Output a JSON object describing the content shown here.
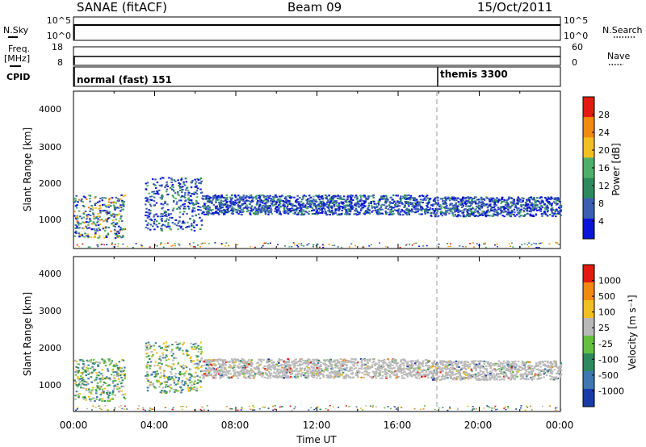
{
  "header": {
    "station": "SANAE (fitACF)",
    "beam": "Beam 09",
    "date": "15/Oct/2011"
  },
  "top_panels": {
    "nsky_label": "N.Sky",
    "nsky_ticks": [
      "10^5",
      "10^0"
    ],
    "nsearch_label": "N.Search",
    "nsearch_ticks": [
      "10^5",
      "10^0"
    ],
    "freq_label_1": "Freq.",
    "freq_label_2": "[MHz]",
    "freq_ticks": [
      "18",
      "8"
    ],
    "nave_label": "Nave",
    "nave_ticks": [
      "60",
      "0"
    ],
    "cpid_label": "CPID",
    "cpid_segments": [
      {
        "label": "normal (fast) 151",
        "start_hour": 0
      },
      {
        "label": "themis 3300",
        "start_hour": 18
      }
    ]
  },
  "chart_data": [
    {
      "type": "heatmap",
      "name": "power",
      "title": "",
      "ylabel": "Slant Range [km]",
      "xlabel": "",
      "xlim": [
        0,
        24
      ],
      "ylim": [
        180,
        4600
      ],
      "yticks": [
        "4000",
        "3000",
        "2000",
        "1000"
      ],
      "colorbar_label": "Power [dB]",
      "colorbar_ticks": [
        "28",
        "24",
        "20",
        "16",
        "12",
        "8",
        "4"
      ],
      "colorbar_colors": [
        "#0a14d8",
        "#3b5fb0",
        "#2e8a5e",
        "#4fb06a",
        "#f0c020",
        "#f08a10",
        "#e21a10"
      ],
      "features": [
        {
          "from_hour": 0.0,
          "to_hour": 2.5,
          "range_low": 500,
          "range_high": 1700
        },
        {
          "from_hour": 3.5,
          "to_hour": 6.3,
          "range_low": 700,
          "range_high": 2200
        },
        {
          "from_hour": 6.3,
          "to_hour": 17.5,
          "range_low": 1150,
          "range_high": 1700
        },
        {
          "from_hour": 17.5,
          "to_hour": 24.0,
          "range_low": 1100,
          "range_high": 1650
        }
      ]
    },
    {
      "type": "heatmap",
      "name": "velocity",
      "title": "",
      "ylabel": "Slant Range [km]",
      "xlabel": "Time UT",
      "xlim": [
        0,
        24
      ],
      "ylim": [
        180,
        4600
      ],
      "xticks": [
        "00:00",
        "04:00",
        "08:00",
        "12:00",
        "16:00",
        "20:00",
        "00:00"
      ],
      "yticks": [
        "4000",
        "3000",
        "2000",
        "1000"
      ],
      "colorbar_label": "Velocity [m s⁻¹]",
      "colorbar_ticks": [
        "1000",
        "500",
        "100",
        "25",
        "-25",
        "-100",
        "-500",
        "-1000"
      ],
      "colorbar_colors": [
        "#1a3aa8",
        "#3f78b0",
        "#2e8a5e",
        "#66c040",
        "#b8b8b8",
        "#f0c020",
        "#f08a10",
        "#e21a10"
      ],
      "features": [
        {
          "from_hour": 0.0,
          "to_hour": 2.5,
          "range_low": 500,
          "range_high": 1700
        },
        {
          "from_hour": 3.5,
          "to_hour": 6.3,
          "range_low": 700,
          "range_high": 2200
        },
        {
          "from_hour": 6.3,
          "to_hour": 17.5,
          "range_low": 1150,
          "range_high": 1700
        },
        {
          "from_hour": 17.5,
          "to_hour": 24.0,
          "range_low": 1100,
          "range_high": 1650
        }
      ]
    }
  ]
}
